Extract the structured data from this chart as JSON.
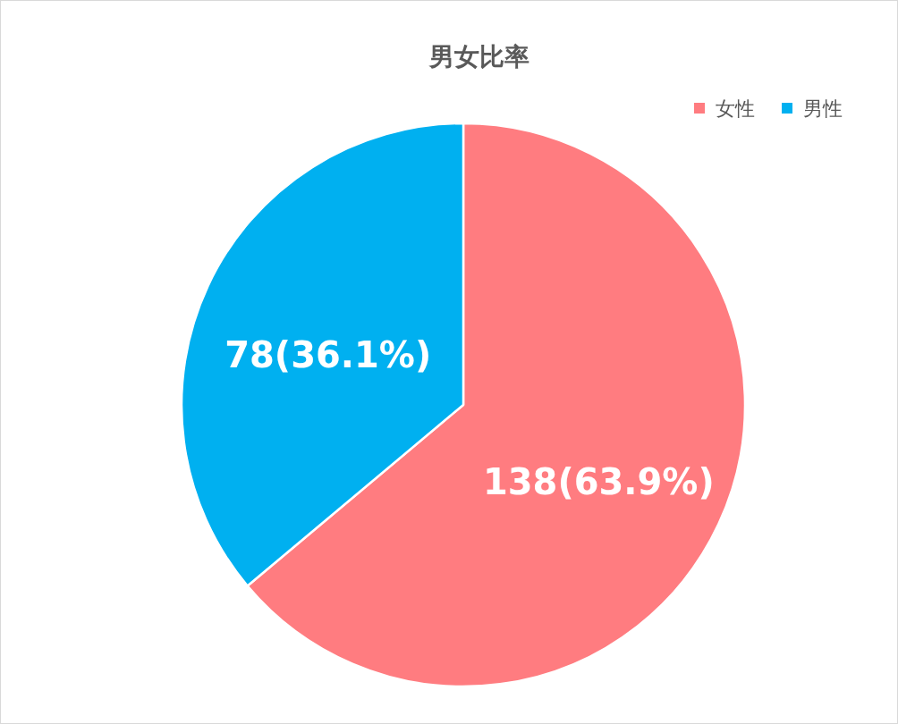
{
  "chart_data": {
    "type": "pie",
    "title": "男女比率",
    "categories": [
      "女性",
      "男性"
    ],
    "values": [
      138,
      78
    ],
    "colors": [
      "#ff7c80",
      "#00b0f0"
    ],
    "value_labels": [
      "138(63.9%)",
      "78(36.1%)"
    ],
    "legend": "top right"
  }
}
